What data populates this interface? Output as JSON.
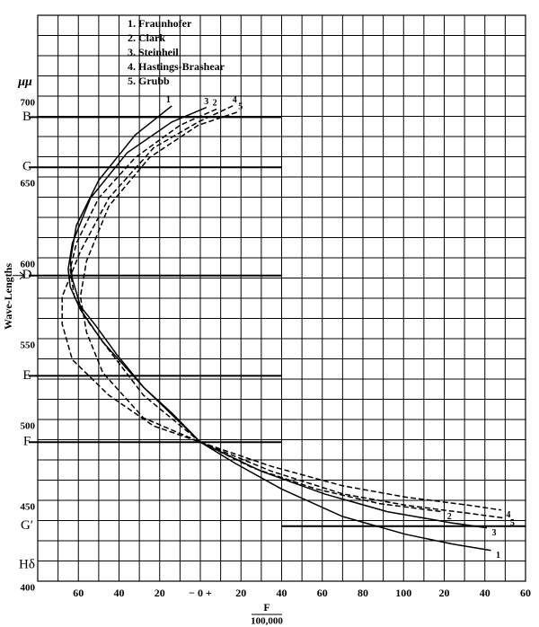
{
  "chart_data": {
    "type": "line",
    "y_label": "Wave-Lengths",
    "y_unit": "μμ",
    "x_label_numerator": "F",
    "x_label_denominator": "100,000",
    "xlim": [
      -80,
      160
    ],
    "ylim": [
      400,
      750
    ],
    "xticks": [
      {
        "value": -60,
        "label": "60"
      },
      {
        "value": -40,
        "label": "40"
      },
      {
        "value": -20,
        "label": "20"
      },
      {
        "value": 0,
        "label": "− 0 +"
      },
      20,
      40,
      60,
      80,
      100,
      {
        "value": 120,
        "label": "20"
      },
      {
        "value": 140,
        "label": "40"
      },
      {
        "value": 160,
        "label": "60"
      }
    ],
    "yticks": [
      400,
      450,
      500,
      550,
      600,
      650,
      700
    ],
    "grid": true,
    "x_grid_step": 10,
    "y_grid_step": 12.5,
    "lines": [
      {
        "label": "B",
        "value": 687,
        "x_from": -80,
        "x_to": 40
      },
      {
        "label": "C",
        "value": 656,
        "x_from": -80,
        "x_to": 40
      },
      {
        "label": "D",
        "value": 589,
        "x_from": -80,
        "x_to": 40
      },
      {
        "label": "E",
        "value": 527,
        "x_from": -80,
        "x_to": 40
      },
      {
        "label": "F",
        "value": 486,
        "x_from": -80,
        "x_to": 40
      },
      {
        "label": "G′",
        "value": 434,
        "x_from": 40,
        "x_to": 160
      },
      {
        "label": "Hδ",
        "value": 410,
        "x_from": -80,
        "x_to": -80
      }
    ],
    "series": [
      {
        "name": "1. Fraunhofer",
        "label": "1",
        "color": "#000000",
        "dashed": false,
        "x": [
          -14,
          -32,
          -50,
          -61,
          -64,
          -63,
          -59,
          -52,
          -41,
          -28,
          -14,
          0,
          17,
          40,
          70,
          101,
          124,
          143
        ],
        "values": [
          694,
          676,
          648,
          620,
          598,
          587,
          570,
          559,
          540,
          520,
          504,
          486,
          473,
          457,
          440,
          429,
          423,
          419
        ]
      },
      {
        "name": "2. Clark",
        "label": "2",
        "color": "#000000",
        "dashed": true,
        "x": [
          8,
          -10,
          -32,
          -50,
          -61,
          -64,
          -62,
          -56,
          -45,
          -28,
          0,
          26,
          57,
          88,
          119
        ],
        "values": [
          692,
          682,
          662,
          637,
          609,
          593,
          576,
          562,
          543,
          515,
          486,
          470,
          457,
          448,
          443
        ]
      },
      {
        "name": "3. Steinheil",
        "label": "3",
        "color": "#000000",
        "dashed": false,
        "x": [
          3,
          -14,
          -36,
          -54,
          -63,
          -65,
          -64,
          -59,
          -48,
          -28,
          0,
          30,
          61,
          92,
          124,
          141
        ],
        "values": [
          693,
          684,
          665,
          637,
          609,
          593,
          582,
          568,
          548,
          520,
          486,
          468,
          454,
          443,
          436,
          433
        ]
      },
      {
        "name": "4. Hastings-Brashear",
        "label": "4",
        "color": "#000000",
        "dashed": true,
        "x": [
          16,
          -1,
          -23,
          -45,
          -59,
          -68,
          -68,
          -63,
          -45,
          -23,
          0,
          35,
          70,
          101,
          132,
          148
        ],
        "values": [
          694,
          684,
          668,
          637,
          604,
          576,
          559,
          537,
          515,
          496,
          486,
          471,
          459,
          452,
          447,
          444
        ]
      },
      {
        "name": "5. Grubb",
        "label": "5",
        "color": "#000000",
        "dashed": true,
        "x": [
          18,
          -1,
          -25,
          -45,
          -56,
          -59,
          -56,
          -48,
          -28,
          0,
          35,
          70,
          101,
          132,
          150
        ],
        "values": [
          690,
          682,
          662,
          632,
          598,
          576,
          554,
          529,
          501,
          486,
          468,
          454,
          447,
          442,
          439
        ]
      }
    ]
  }
}
